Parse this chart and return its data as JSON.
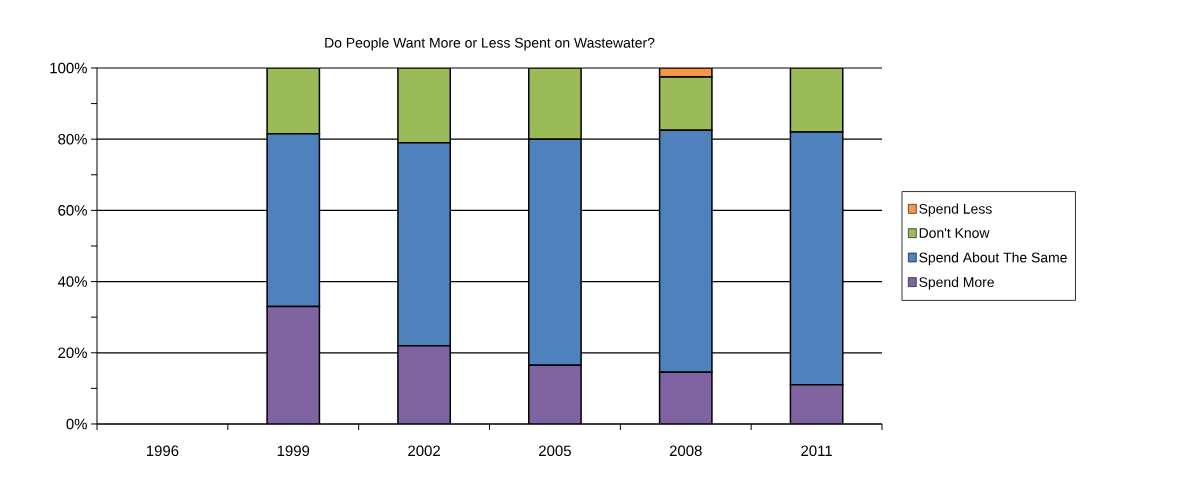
{
  "chart_data": {
    "type": "bar",
    "stacked": true,
    "title": "Do People Want More or Less Spent on Wastewater?",
    "categories": [
      "1996",
      "1999",
      "2002",
      "2005",
      "2008",
      "2011"
    ],
    "series": [
      {
        "name": "Spend More",
        "color": "#8064a2",
        "values": [
          null,
          33,
          22,
          16.5,
          14.5,
          11
        ]
      },
      {
        "name": "Spend About The Same",
        "color": "#4f81bd",
        "values": [
          null,
          48.5,
          57,
          63.5,
          68,
          71
        ]
      },
      {
        "name": "Don't Know",
        "color": "#9bbb59",
        "values": [
          null,
          18.5,
          21,
          20,
          15,
          18
        ]
      },
      {
        "name": "Spend Less",
        "color": "#f79646",
        "values": [
          null,
          0,
          0,
          0,
          2.5,
          0
        ]
      }
    ],
    "ylim": [
      0,
      100
    ],
    "yticks": [
      {
        "value": 0,
        "label": "0%"
      },
      {
        "value": 20,
        "label": "20%"
      },
      {
        "value": 40,
        "label": "40%"
      },
      {
        "value": 60,
        "label": "60%"
      },
      {
        "value": 80,
        "label": "80%"
      },
      {
        "value": 100,
        "label": "100%"
      }
    ],
    "grid": "y",
    "legend": "right"
  }
}
